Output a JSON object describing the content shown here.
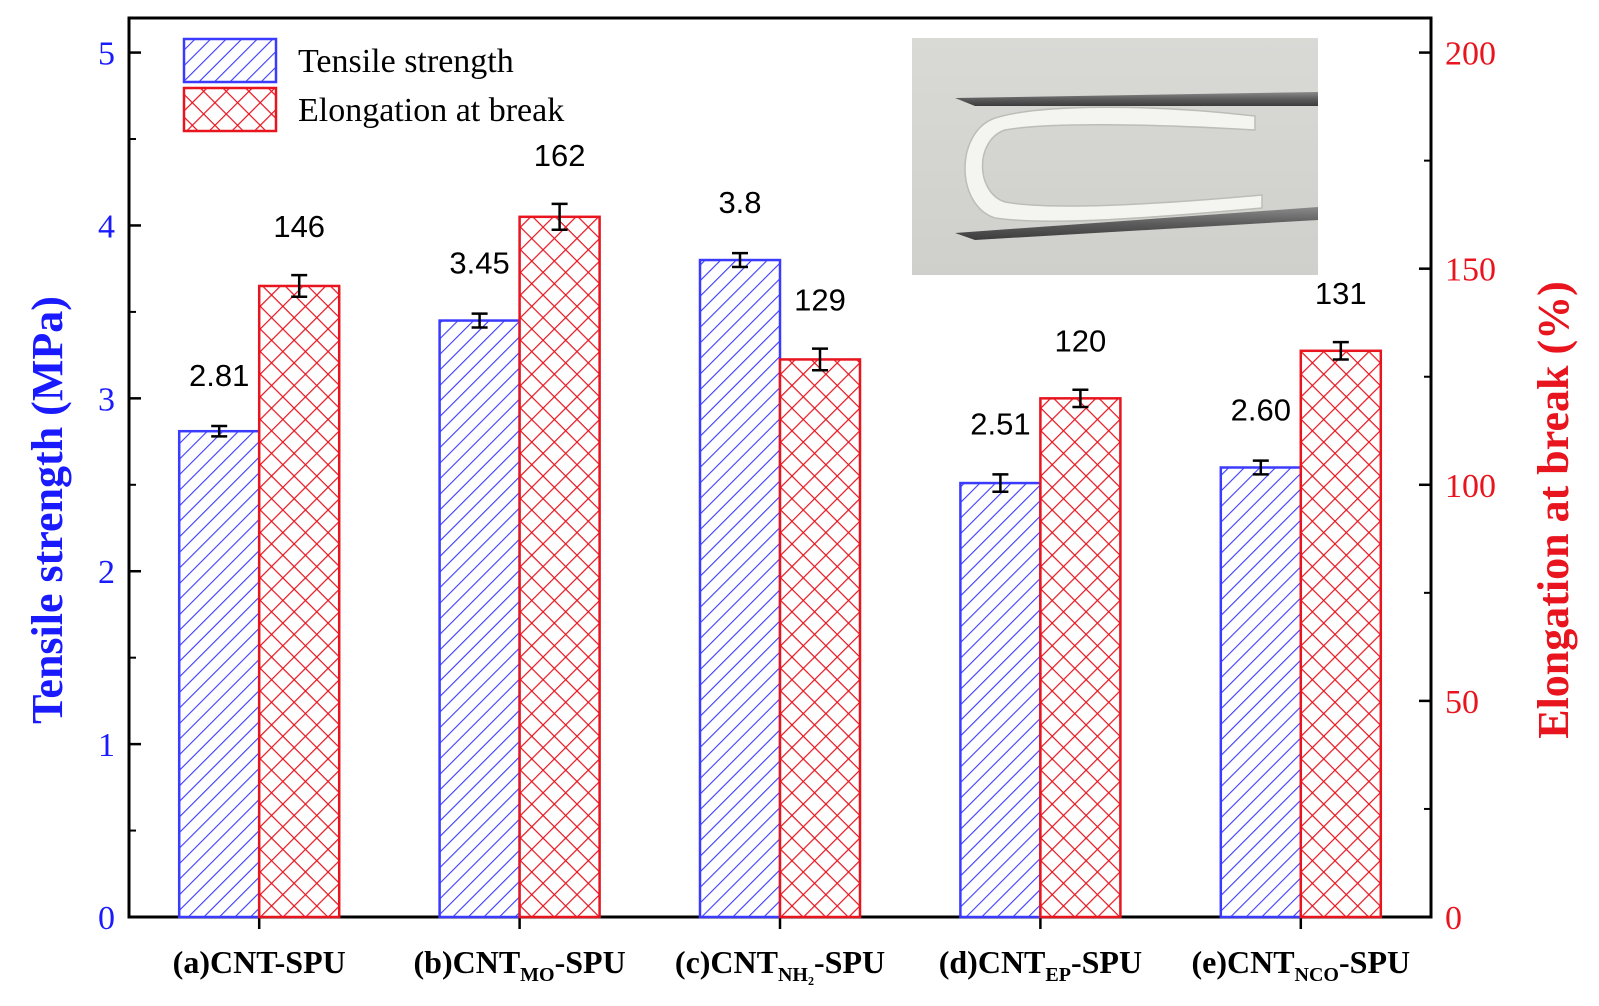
{
  "chart_data": {
    "type": "bar",
    "title": "",
    "categories": [
      {
        "prefix": "(a)CNT-SPU",
        "sub": "",
        "suffix": ""
      },
      {
        "prefix": "(b)CNT",
        "sub": "MO",
        "suffix": "-SPU"
      },
      {
        "prefix": "(c)CNT",
        "sub": "NH₂",
        "suffix": "-SPU"
      },
      {
        "prefix": "(d)CNT",
        "sub": "EP",
        "suffix": "-SPU"
      },
      {
        "prefix": "(e)CNT",
        "sub": "NCO",
        "suffix": "-SPU"
      }
    ],
    "series": [
      {
        "name": "Tensile strength",
        "axis": "left",
        "color": "#3b3bff",
        "pattern": "diagonal-hatch",
        "values": [
          2.81,
          3.45,
          3.8,
          2.51,
          2.6
        ],
        "errors": [
          0.03,
          0.04,
          0.04,
          0.05,
          0.04
        ],
        "data_labels": [
          "2.81",
          "3.45",
          "3.8",
          "2.51",
          "2.60"
        ]
      },
      {
        "name": "Elongation at break",
        "axis": "right",
        "color": "#e8141e",
        "pattern": "cross-hatch",
        "values": [
          146,
          162,
          129,
          120,
          131
        ],
        "errors": [
          2.5,
          3,
          2.5,
          2,
          2
        ],
        "data_labels": [
          "146",
          "162",
          "129",
          "120",
          "131"
        ]
      }
    ],
    "ylabel_left": "Tensile strength (MPa)",
    "ylabel_right": "Elongation at break (%)",
    "ylim_left": [
      0,
      5.2
    ],
    "ylim_right": [
      0,
      208
    ],
    "yticks_left": [
      "0",
      "1",
      "2",
      "3",
      "4",
      "5"
    ],
    "yticks_right": [
      "0",
      "50",
      "100",
      "150",
      "200"
    ],
    "legend_position": "top-left",
    "inset": "photo of bent white sample strip held in tweezers (top-right)"
  }
}
